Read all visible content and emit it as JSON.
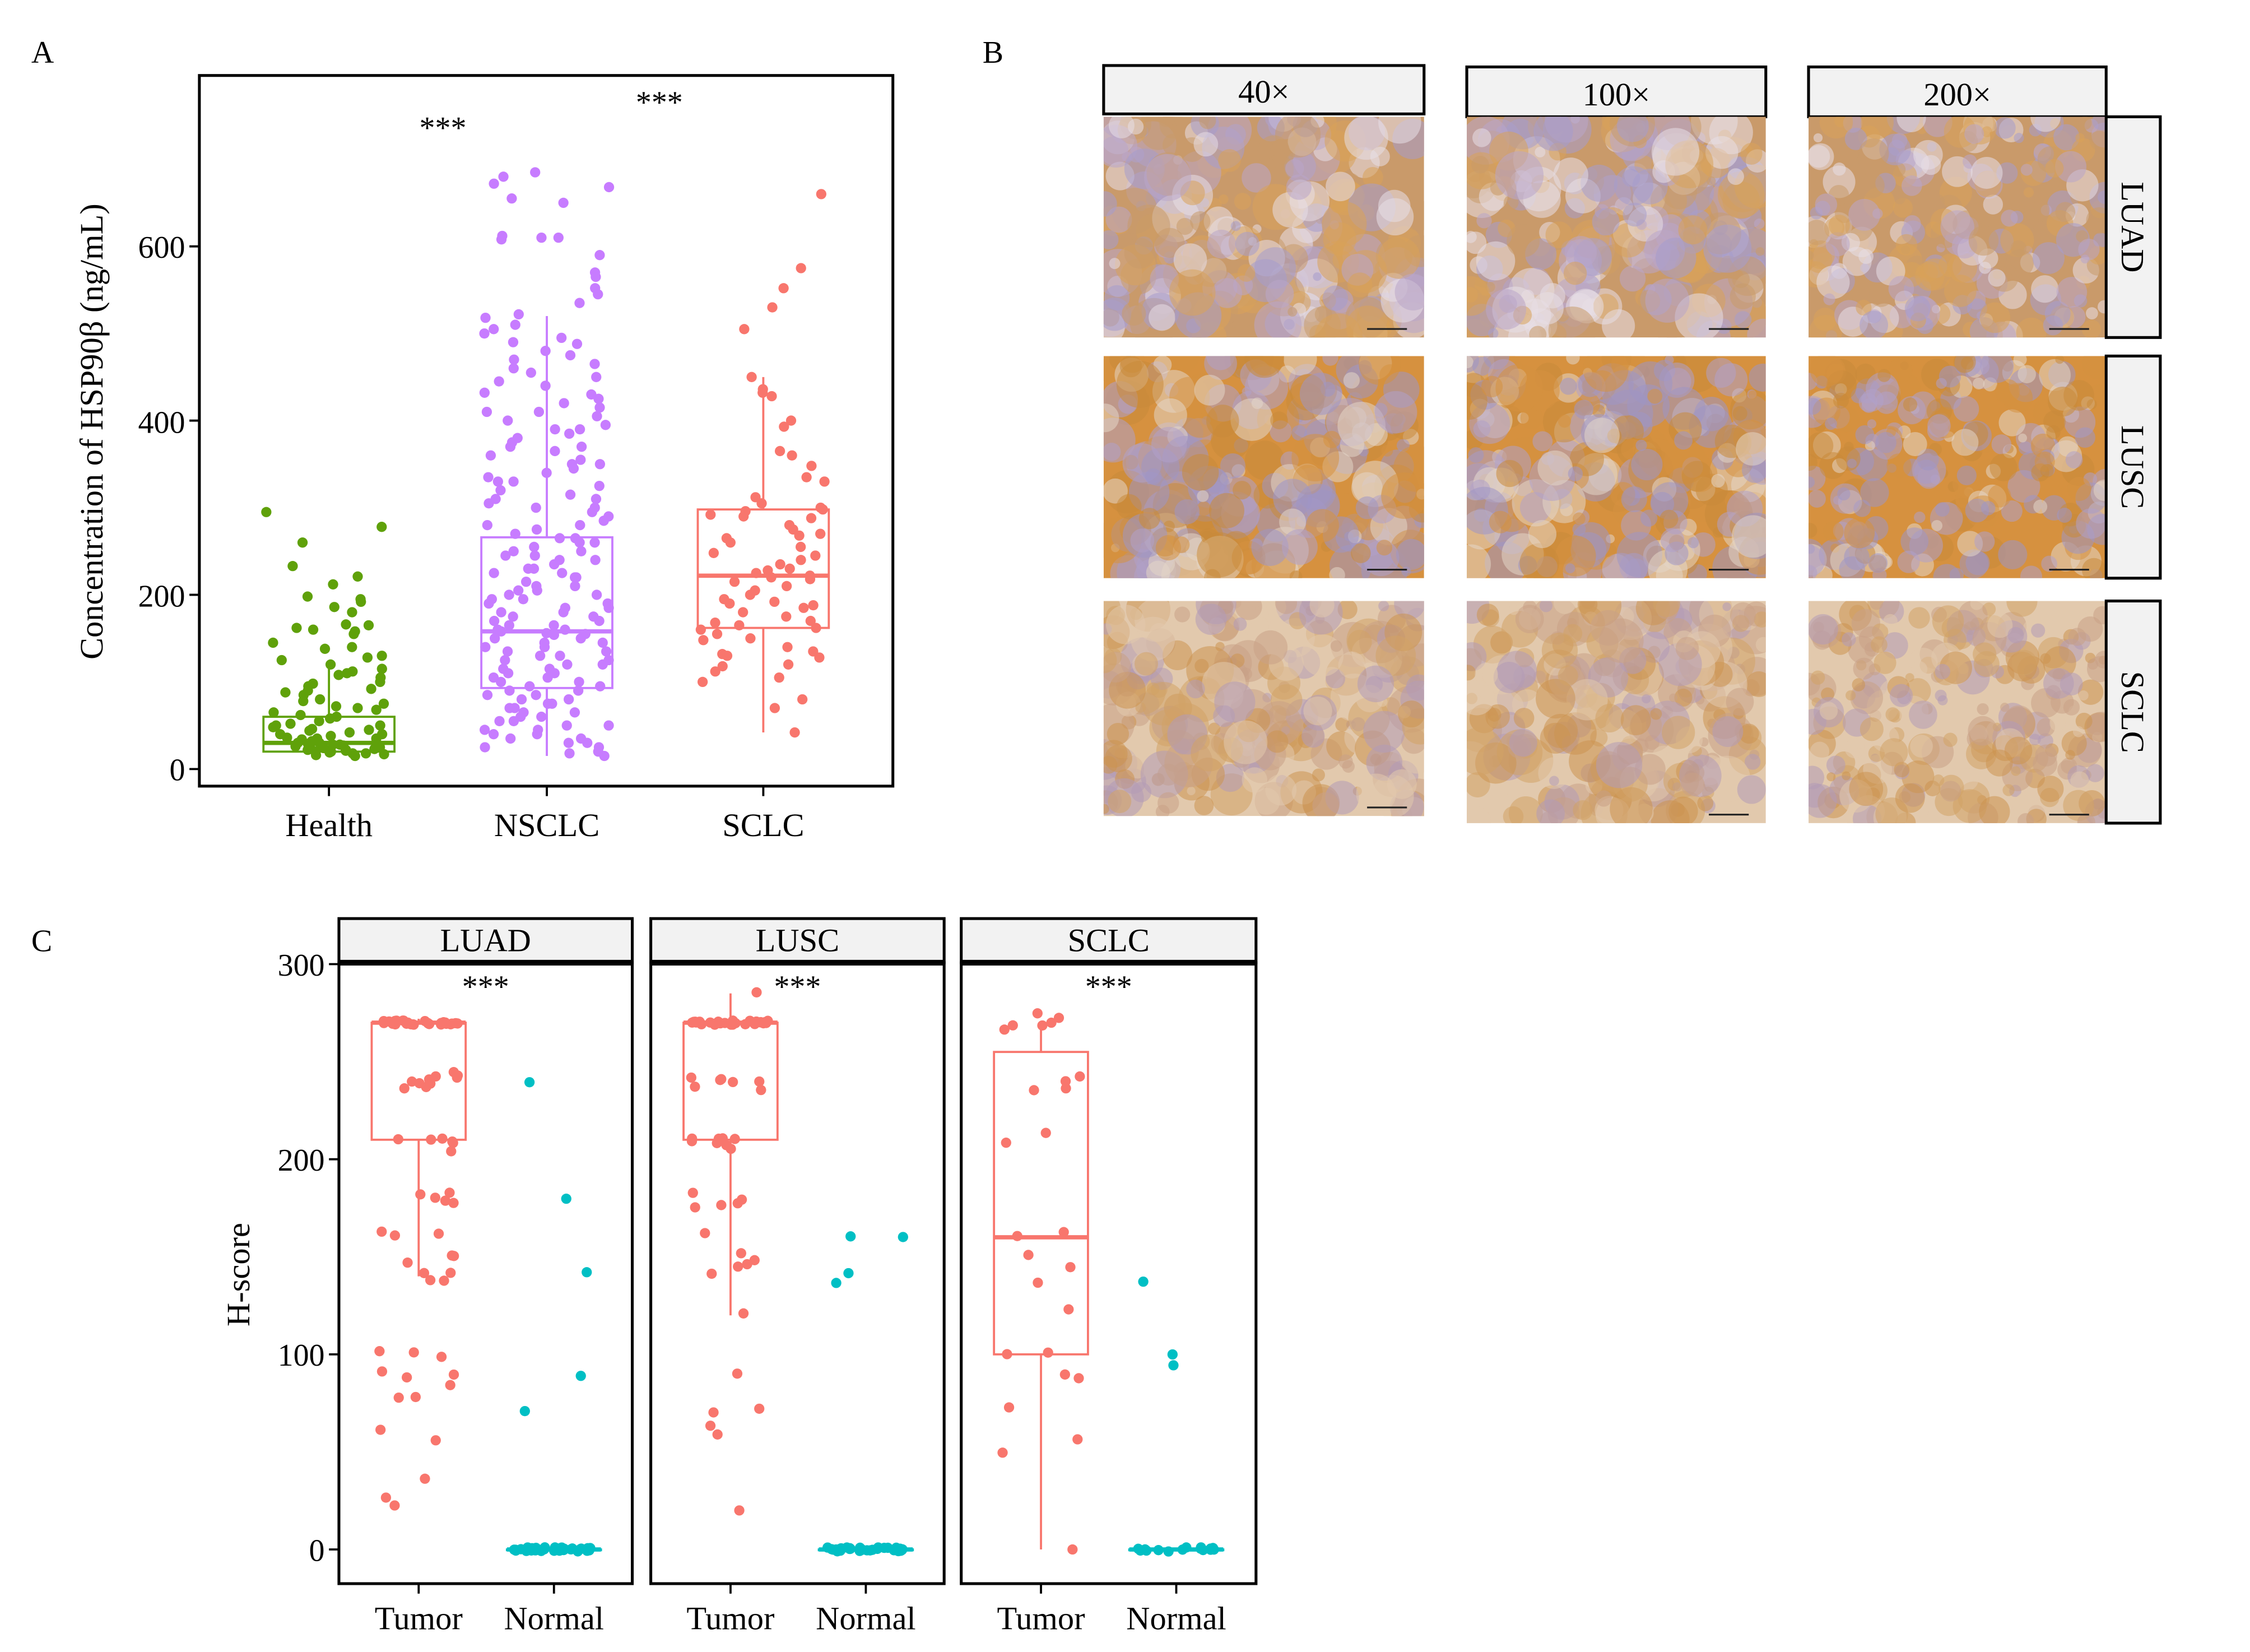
{
  "colors": {
    "health": "#5fa10a",
    "nsclc": "#c77cff",
    "sclc": "#f8766d",
    "tumor": "#f8766d",
    "normal": "#00bfc4",
    "strip_fill": "#f2f2f2"
  },
  "chart_data": [
    {
      "panel": "A",
      "type": "box+jitter",
      "ylabel": "Concentration of HSP90β (ng/mL)",
      "ylim": [
        -20,
        780
      ],
      "yticks": [
        "0",
        "200",
        "400",
        "600"
      ],
      "categories": [
        "Health",
        "NSCLC",
        "SCLC"
      ],
      "significance": [
        {
          "between": [
            "Health",
            "NSCLC"
          ],
          "label": "***"
        },
        {
          "between": [
            "NSCLC",
            "SCLC"
          ],
          "label": "***"
        }
      ],
      "boxes": [
        {
          "q1": 20,
          "median": 30,
          "q3": 60,
          "lower": 14,
          "upper": 115
        },
        {
          "q1": 93,
          "median": 158,
          "q3": 266,
          "lower": 15,
          "upper": 520
        },
        {
          "q1": 162,
          "median": 222,
          "q3": 298,
          "lower": 42,
          "upper": 450
        }
      ],
      "points": [
        [
          295,
          278,
          260,
          233,
          221,
          212,
          198,
          195,
          192,
          186,
          180,
          166,
          165,
          162,
          160,
          158,
          155,
          145,
          140,
          138,
          130,
          128,
          125,
          120,
          115,
          112,
          110,
          108,
          105,
          100,
          98,
          95,
          92,
          90,
          88,
          85,
          80,
          78,
          75,
          72,
          70,
          68,
          65,
          62,
          60,
          58,
          55,
          52,
          50,
          48,
          46,
          44,
          42,
          40,
          38,
          36,
          35,
          34,
          32,
          30,
          29,
          28,
          27,
          26,
          25,
          24,
          23,
          22,
          21,
          20,
          19,
          18,
          17,
          16,
          15,
          30,
          28,
          25,
          22,
          20,
          18,
          35,
          40,
          45,
          50
        ],
        [
          685,
          680,
          672,
          668,
          655,
          650,
          612,
          610,
          610,
          608,
          590,
          570,
          565,
          552,
          545,
          535,
          522,
          518,
          510,
          505,
          500,
          495,
          490,
          488,
          480,
          475,
          470,
          465,
          460,
          455,
          450,
          445,
          440,
          432,
          425,
          420,
          415,
          410,
          405,
          400,
          395,
          390,
          385,
          380,
          375,
          370,
          365,
          360,
          355,
          350,
          345,
          340,
          335,
          330,
          325,
          320,
          315,
          310,
          305,
          300,
          295,
          290,
          285,
          280,
          275,
          270,
          265,
          260,
          255,
          250,
          245,
          240,
          235,
          230,
          225,
          220,
          215,
          210,
          205,
          200,
          195,
          190,
          185,
          180,
          175,
          170,
          165,
          160,
          158,
          156,
          154,
          150,
          145,
          140,
          135,
          130,
          125,
          120,
          115,
          110,
          105,
          100,
          95,
          90,
          85,
          80,
          75,
          70,
          65,
          60,
          55,
          50,
          45,
          40,
          35,
          30,
          25,
          20,
          18,
          15,
          280,
          260,
          240,
          220,
          200,
          190,
          180,
          170,
          160,
          150,
          140,
          130,
          120,
          110,
          100,
          90,
          80,
          70,
          60,
          50,
          40,
          30,
          250,
          230,
          210,
          195,
          175,
          155,
          135,
          115,
          95,
          75,
          55,
          35,
          265,
          245,
          225,
          205,
          185,
          165,
          145,
          125,
          105,
          85,
          65,
          45,
          25,
          300,
          310,
          330,
          350,
          370,
          390,
          410,
          430
        ],
        [
          660,
          575,
          552,
          530,
          505,
          450,
          436,
          432,
          428,
          400,
          393,
          365,
          360,
          348,
          335,
          330,
          312,
          305,
          300,
          298,
          296,
          292,
          290,
          288,
          280,
          275,
          270,
          268,
          265,
          260,
          255,
          248,
          245,
          240,
          235,
          230,
          228,
          225,
          222,
          220,
          218,
          215,
          210,
          205,
          200,
          195,
          192,
          190,
          188,
          185,
          180,
          175,
          170,
          168,
          165,
          162,
          160,
          155,
          150,
          148,
          140,
          135,
          132,
          130,
          128,
          120,
          118,
          112,
          105,
          100,
          80,
          70,
          42
        ]
      ]
    },
    {
      "panel": "C",
      "type": "faceted box+jitter",
      "ylabel": "H-score",
      "ylim": [
        -15,
        300
      ],
      "yticks": [
        "0",
        "100",
        "200",
        "300"
      ],
      "categories": [
        "Tumor",
        "Normal"
      ],
      "facets": [
        {
          "name": "LUAD",
          "significance": "***",
          "boxes": [
            {
              "q1": 210,
              "median": 270,
              "q3": 270,
              "lower": 140,
              "upper": 272
            },
            {
              "q1": 0,
              "median": 0,
              "q3": 0,
              "lower": 0,
              "upper": 0
            }
          ],
          "tumor": [
            270,
            270,
            270,
            270,
            270,
            270,
            270,
            270,
            270,
            270,
            270,
            270,
            270,
            270,
            270,
            270,
            270,
            270,
            270,
            270,
            270,
            270,
            270,
            270,
            270,
            270,
            270,
            270,
            270,
            270,
            242,
            240,
            240,
            238,
            238,
            242,
            244,
            240,
            236,
            242,
            210,
            210,
            210,
            211,
            208,
            205,
            183,
            182,
            178,
            178,
            180,
            162,
            160,
            162,
            150,
            150,
            148,
            141,
            141,
            138,
            138,
            101,
            100,
            98,
            91,
            90,
            88,
            84,
            79,
            78,
            62,
            57,
            36,
            27,
            22
          ],
          "normal": [
            239,
            179,
            143,
            90,
            72,
            0,
            0,
            0,
            0,
            0,
            0,
            0,
            0,
            0,
            0,
            0,
            0,
            0,
            0,
            0,
            0,
            0,
            0,
            0,
            0,
            0,
            0,
            0,
            0,
            0,
            0,
            0,
            0,
            0,
            0,
            0,
            0,
            0,
            0,
            0
          ]
        },
        {
          "name": "LUSC",
          "significance": "***",
          "boxes": [
            {
              "q1": 210,
              "median": 270,
              "q3": 270,
              "lower": 120,
              "upper": 285
            },
            {
              "q1": 0,
              "median": 0,
              "q3": 0,
              "lower": 0,
              "upper": 0
            }
          ],
          "tumor": [
            285,
            270,
            270,
            270,
            270,
            270,
            270,
            270,
            270,
            270,
            270,
            270,
            270,
            270,
            270,
            270,
            270,
            270,
            270,
            270,
            270,
            270,
            270,
            270,
            270,
            270,
            270,
            270,
            270,
            242,
            240,
            240,
            238,
            236,
            240,
            242,
            210,
            210,
            210,
            211,
            209,
            207,
            205,
            210,
            182,
            180,
            178,
            177,
            176,
            162,
            152,
            148,
            147,
            145,
            142,
            121,
            90,
            72,
            70,
            64,
            58,
            19
          ],
          "normal": [
            161,
            160,
            142,
            137,
            0,
            0,
            0,
            0,
            0,
            0,
            0,
            0,
            0,
            0,
            0,
            0,
            0,
            0,
            0,
            0,
            0,
            0,
            0,
            0,
            0,
            0,
            0,
            0,
            0,
            0,
            0,
            0,
            0,
            0
          ]
        },
        {
          "name": "SCLC",
          "significance": "***",
          "boxes": [
            {
              "q1": 100,
              "median": 160,
              "q3": 255,
              "lower": 0,
              "upper": 270
            },
            {
              "q1": 0,
              "median": 0,
              "q3": 0,
              "lower": 0,
              "upper": 0
            }
          ],
          "tumor": [
            274,
            273,
            270,
            268,
            268,
            266,
            242,
            240,
            237,
            236,
            213,
            208,
            162,
            160,
            150,
            144,
            137,
            124,
            101,
            100,
            89,
            88,
            73,
            56,
            49,
            0
          ],
          "normal": [
            137,
            100,
            94,
            0,
            0,
            0,
            0,
            0,
            0,
            0,
            0,
            0,
            0,
            0,
            0,
            0,
            0,
            0
          ]
        }
      ]
    }
  ],
  "panels": {
    "a": "A",
    "b": "B",
    "c": "C"
  },
  "micrographs": {
    "columns": [
      "40×",
      "100×",
      "200×"
    ],
    "rows": [
      "LUAD",
      "LUSC",
      "SCLC"
    ]
  }
}
